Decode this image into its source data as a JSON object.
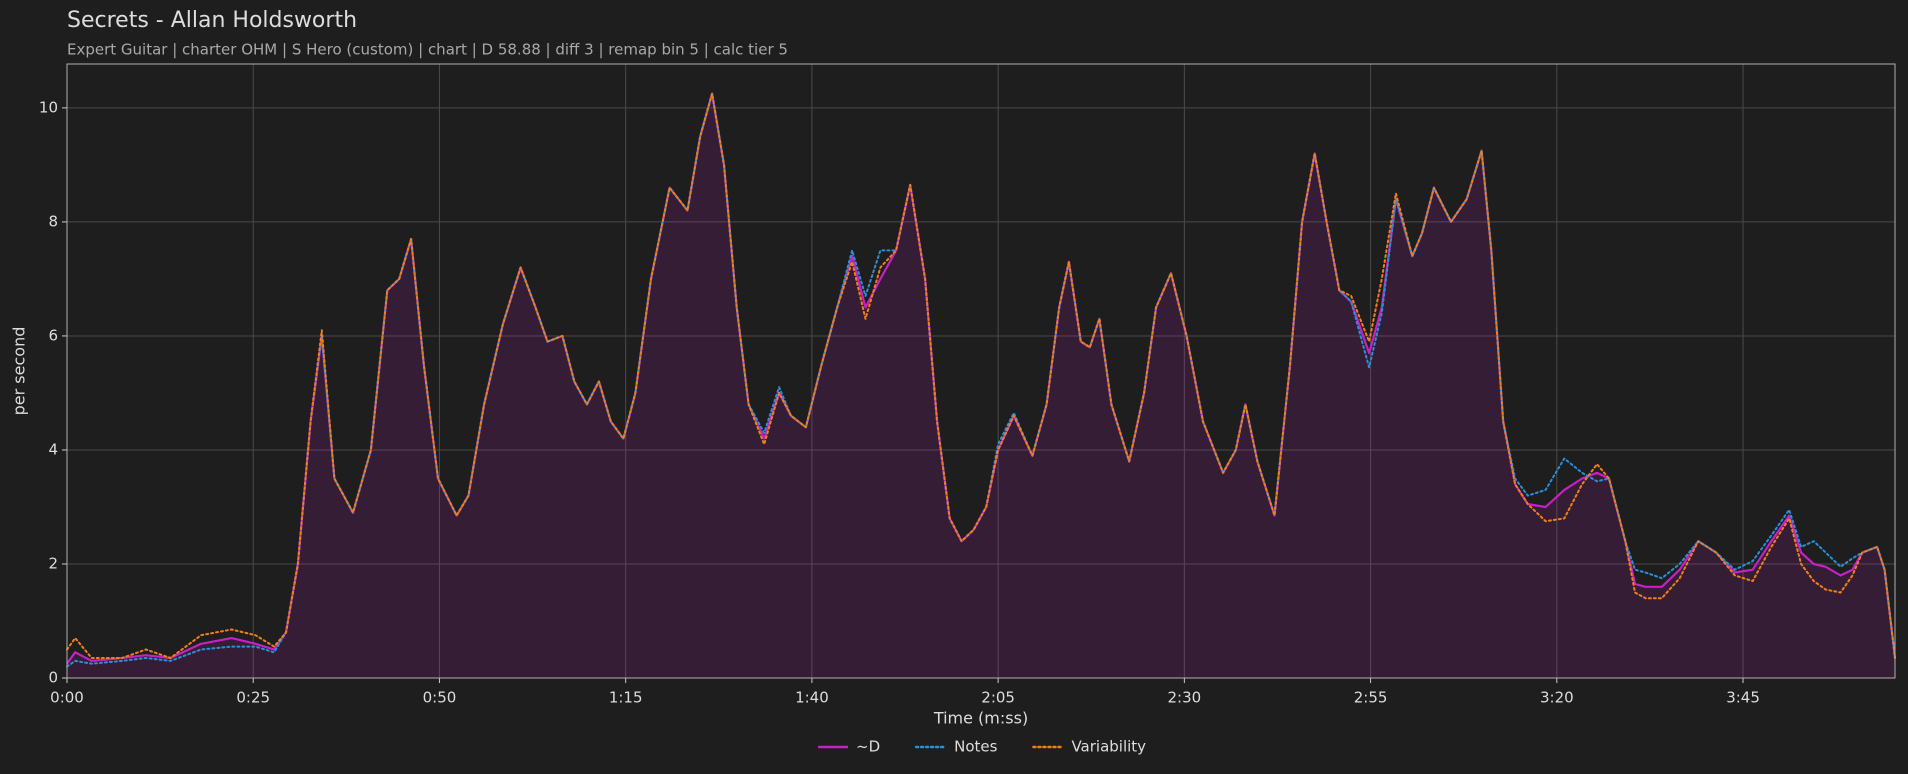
{
  "chart_data": {
    "type": "line",
    "title": "Secrets - Allan Holdsworth",
    "subtitle": "Expert Guitar  |  charter OHM  |  S Hero (custom)  |  chart  |  D 58.88  |  diff 3  |  remap bin 5  |  calc tier 5",
    "xlabel": "Time (m:ss)",
    "ylabel": "per second",
    "x": [
      0,
      1.1,
      3.3,
      7.4,
      10.6,
      13.9,
      18.0,
      22.1,
      25.3,
      27.8,
      29.4,
      31.0,
      32.7,
      34.2,
      35.9,
      38.4,
      40.8,
      43.0,
      44.6,
      46.2,
      47.9,
      49.8,
      52.3,
      53.9,
      56.0,
      58.5,
      60.9,
      62.9,
      64.5,
      66.5,
      68.1,
      69.8,
      71.4,
      73.0,
      74.7,
      76.3,
      78.4,
      80.9,
      83.3,
      85.0,
      86.6,
      88.2,
      89.9,
      91.5,
      93.6,
      95.6,
      97.2,
      99.2,
      101.3,
      103.4,
      105.4,
      107.2,
      109.2,
      111.3,
      113.2,
      115.2,
      116.8,
      118.5,
      120.1,
      121.7,
      123.4,
      125.0,
      127.1,
      129.6,
      131.5,
      133.2,
      134.5,
      136.1,
      137.3,
      138.6,
      140.2,
      142.6,
      144.6,
      146.2,
      148.2,
      150.3,
      152.5,
      155.2,
      156.9,
      158.2,
      159.8,
      162.1,
      164.2,
      165.8,
      167.5,
      169.1,
      170.8,
      172.4,
      174.8,
      176.5,
      178.4,
      180.6,
      181.9,
      183.5,
      185.8,
      187.9,
      189.9,
      191.2,
      192.8,
      194.4,
      196.1,
      198.5,
      201.0,
      203.4,
      205.4,
      207.0,
      209.2,
      210.5,
      211.9,
      214.1,
      216.5,
      219.0,
      221.4,
      223.9,
      226.3,
      228.8,
      231.2,
      232.8,
      234.5,
      236.1,
      238.1,
      239.7,
      241.0,
      243.0,
      244.0,
      245.4
    ],
    "series": [
      {
        "name": "~D",
        "color": "#c521c5",
        "style": "solid",
        "fill": true,
        "values": [
          0.25,
          0.45,
          0.3,
          0.35,
          0.4,
          0.35,
          0.6,
          0.7,
          0.6,
          0.5,
          0.8,
          2,
          4.5,
          6.0,
          3.5,
          2.9,
          4,
          6.8,
          7.0,
          7.7,
          5.5,
          3.5,
          2.85,
          3.2,
          4.8,
          6.2,
          7.2,
          6.5,
          5.9,
          6.0,
          5.2,
          4.8,
          5.2,
          4.5,
          4.2,
          5.0,
          7.0,
          8.6,
          8.2,
          9.5,
          10.25,
          9.0,
          6.5,
          4.8,
          4.2,
          5.0,
          4.6,
          4.4,
          5.5,
          6.5,
          7.4,
          6.5,
          7.0,
          7.5,
          8.65,
          7.0,
          4.5,
          2.8,
          2.4,
          2.6,
          3.0,
          4.0,
          4.6,
          3.9,
          4.8,
          6.5,
          7.3,
          5.9,
          5.8,
          6.3,
          4.8,
          3.8,
          5.0,
          6.5,
          7.1,
          6.0,
          4.5,
          3.6,
          4.0,
          4.8,
          3.8,
          2.85,
          5.5,
          8.0,
          9.2,
          8.0,
          6.8,
          6.6,
          5.7,
          6.5,
          8.4,
          7.4,
          7.8,
          8.6,
          8.0,
          8.4,
          9.25,
          7.5,
          4.5,
          3.4,
          3.05,
          3.0,
          3.3,
          3.5,
          3.6,
          3.5,
          2.4,
          1.65,
          1.6,
          1.6,
          1.9,
          2.4,
          2.2,
          1.85,
          1.9,
          2.4,
          2.85,
          2.2,
          2.0,
          1.95,
          1.8,
          1.9,
          2.2,
          2.3,
          1.9,
          0.35
        ]
      },
      {
        "name": "Notes",
        "color": "#2a8fd6",
        "style": "dotted",
        "values": [
          0.2,
          0.3,
          0.25,
          0.3,
          0.35,
          0.3,
          0.5,
          0.55,
          0.55,
          0.45,
          0.8,
          2,
          4.5,
          6.0,
          3.5,
          2.9,
          4,
          6.8,
          7.0,
          7.7,
          5.5,
          3.5,
          2.85,
          3.2,
          4.8,
          6.2,
          7.2,
          6.5,
          5.9,
          6.0,
          5.2,
          4.8,
          5.2,
          4.5,
          4.2,
          5.0,
          7.0,
          8.6,
          8.2,
          9.5,
          10.25,
          9.0,
          6.5,
          4.8,
          4.3,
          5.1,
          4.6,
          4.4,
          5.5,
          6.5,
          7.5,
          6.7,
          7.5,
          7.5,
          8.65,
          7.0,
          4.5,
          2.8,
          2.4,
          2.6,
          3.0,
          4.1,
          4.65,
          3.9,
          4.8,
          6.5,
          7.3,
          5.9,
          5.8,
          6.3,
          4.8,
          3.8,
          5.0,
          6.5,
          7.1,
          6.0,
          4.5,
          3.6,
          4.0,
          4.8,
          3.8,
          2.85,
          5.5,
          8.0,
          9.2,
          8.0,
          6.8,
          6.6,
          5.45,
          6.4,
          8.4,
          7.4,
          7.8,
          8.6,
          8.0,
          8.4,
          9.25,
          7.5,
          4.5,
          3.5,
          3.2,
          3.3,
          3.85,
          3.6,
          3.45,
          3.5,
          2.4,
          1.9,
          1.85,
          1.75,
          2.0,
          2.4,
          2.2,
          1.9,
          2.05,
          2.5,
          2.95,
          2.3,
          2.4,
          2.2,
          1.95,
          2.1,
          2.2,
          2.3,
          1.9,
          0.35
        ]
      },
      {
        "name": "Variability",
        "color": "#f07f1a",
        "style": "dotted",
        "values": [
          0.5,
          0.7,
          0.35,
          0.35,
          0.5,
          0.35,
          0.75,
          0.85,
          0.75,
          0.55,
          0.8,
          2,
          4.5,
          6.1,
          3.5,
          2.9,
          4,
          6.8,
          7.0,
          7.7,
          5.5,
          3.5,
          2.85,
          3.2,
          4.8,
          6.2,
          7.2,
          6.5,
          5.9,
          6.0,
          5.2,
          4.8,
          5.2,
          4.5,
          4.2,
          5.0,
          7.0,
          8.6,
          8.2,
          9.5,
          10.25,
          9.0,
          6.5,
          4.8,
          4.1,
          5.0,
          4.6,
          4.4,
          5.5,
          6.5,
          7.3,
          6.3,
          7.2,
          7.5,
          8.65,
          7.0,
          4.5,
          2.8,
          2.4,
          2.6,
          3.0,
          4.0,
          4.6,
          3.9,
          4.8,
          6.5,
          7.3,
          5.9,
          5.8,
          6.3,
          4.8,
          3.8,
          5.0,
          6.5,
          7.1,
          6.0,
          4.5,
          3.6,
          4.0,
          4.8,
          3.8,
          2.85,
          5.5,
          8.0,
          9.2,
          8.0,
          6.8,
          6.7,
          5.9,
          7.0,
          8.5,
          7.4,
          7.8,
          8.6,
          8.0,
          8.4,
          9.25,
          7.5,
          4.5,
          3.4,
          3.05,
          2.75,
          2.8,
          3.4,
          3.75,
          3.5,
          2.4,
          1.5,
          1.4,
          1.4,
          1.75,
          2.4,
          2.2,
          1.8,
          1.7,
          2.3,
          2.8,
          2.0,
          1.7,
          1.55,
          1.5,
          1.8,
          2.2,
          2.3,
          1.9,
          0.35
        ]
      }
    ],
    "xlim": [
      0,
      245.4
    ],
    "ylim": [
      0,
      10.77
    ],
    "xticks": [
      {
        "value": 0,
        "label": "0:00"
      },
      {
        "value": 25,
        "label": "0:25"
      },
      {
        "value": 50,
        "label": "0:50"
      },
      {
        "value": 75,
        "label": "1:15"
      },
      {
        "value": 100,
        "label": "1:40"
      },
      {
        "value": 125,
        "label": "2:05"
      },
      {
        "value": 150,
        "label": "2:30"
      },
      {
        "value": 175,
        "label": "2:55"
      },
      {
        "value": 200,
        "label": "3:20"
      },
      {
        "value": 225,
        "label": "3:45"
      }
    ],
    "yticks": [
      0,
      2,
      4,
      6,
      8,
      10
    ],
    "grid": true,
    "legend": "bottom"
  }
}
